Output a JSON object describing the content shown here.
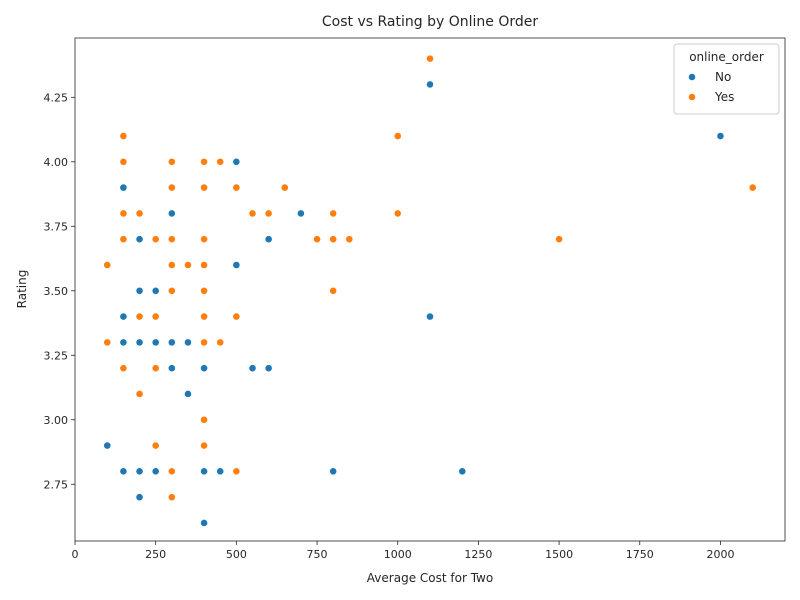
{
  "chart_data": {
    "type": "scatter",
    "title": "Cost vs Rating by Online Order",
    "xlabel": "Average Cost for Two",
    "ylabel": "Rating",
    "xlim": [
      0,
      2200
    ],
    "ylim": [
      2.53,
      4.48
    ],
    "xticks": [
      0,
      250,
      500,
      750,
      1000,
      1250,
      1500,
      1750,
      2000
    ],
    "yticks": [
      2.75,
      3.0,
      3.25,
      3.5,
      3.75,
      4.0,
      4.25
    ],
    "ytick_labels": [
      "2.75",
      "3.00",
      "3.25",
      "3.50",
      "3.75",
      "4.00",
      "4.25"
    ],
    "grid": false,
    "legend": {
      "title": "online_order",
      "placement": "top-right"
    },
    "series": [
      {
        "name": "No",
        "color": "#1f77b4",
        "points": [
          [
            1100,
            4.3
          ],
          [
            2000,
            4.1
          ],
          [
            500,
            4.0
          ],
          [
            150,
            3.9
          ],
          [
            300,
            3.8
          ],
          [
            700,
            3.8
          ],
          [
            200,
            3.7
          ],
          [
            600,
            3.7
          ],
          [
            500,
            3.6
          ],
          [
            200,
            3.5
          ],
          [
            250,
            3.5
          ],
          [
            150,
            3.4
          ],
          [
            1100,
            3.4
          ],
          [
            150,
            3.3
          ],
          [
            200,
            3.3
          ],
          [
            250,
            3.3
          ],
          [
            300,
            3.3
          ],
          [
            350,
            3.3
          ],
          [
            300,
            3.2
          ],
          [
            400,
            3.2
          ],
          [
            550,
            3.2
          ],
          [
            600,
            3.2
          ],
          [
            350,
            3.1
          ],
          [
            100,
            2.9
          ],
          [
            150,
            2.8
          ],
          [
            200,
            2.8
          ],
          [
            250,
            2.8
          ],
          [
            400,
            2.8
          ],
          [
            450,
            2.8
          ],
          [
            800,
            2.8
          ],
          [
            1200,
            2.8
          ],
          [
            200,
            2.7
          ],
          [
            400,
            2.6
          ]
        ]
      },
      {
        "name": "Yes",
        "color": "#ff7f0e",
        "points": [
          [
            1100,
            4.4
          ],
          [
            150,
            4.1
          ],
          [
            1000,
            4.1
          ],
          [
            150,
            4.0
          ],
          [
            300,
            4.0
          ],
          [
            400,
            4.0
          ],
          [
            450,
            4.0
          ],
          [
            300,
            3.9
          ],
          [
            400,
            3.9
          ],
          [
            500,
            3.9
          ],
          [
            650,
            3.9
          ],
          [
            2100,
            3.9
          ],
          [
            150,
            3.8
          ],
          [
            200,
            3.8
          ],
          [
            550,
            3.8
          ],
          [
            600,
            3.8
          ],
          [
            800,
            3.8
          ],
          [
            1000,
            3.8
          ],
          [
            150,
            3.7
          ],
          [
            250,
            3.7
          ],
          [
            300,
            3.7
          ],
          [
            400,
            3.7
          ],
          [
            750,
            3.7
          ],
          [
            800,
            3.7
          ],
          [
            850,
            3.7
          ],
          [
            1500,
            3.7
          ],
          [
            100,
            3.6
          ],
          [
            300,
            3.6
          ],
          [
            350,
            3.6
          ],
          [
            400,
            3.6
          ],
          [
            300,
            3.5
          ],
          [
            400,
            3.5
          ],
          [
            800,
            3.5
          ],
          [
            200,
            3.4
          ],
          [
            250,
            3.4
          ],
          [
            400,
            3.4
          ],
          [
            500,
            3.4
          ],
          [
            100,
            3.3
          ],
          [
            400,
            3.3
          ],
          [
            450,
            3.3
          ],
          [
            150,
            3.2
          ],
          [
            250,
            3.2
          ],
          [
            200,
            3.1
          ],
          [
            400,
            3.0
          ],
          [
            250,
            2.9
          ],
          [
            400,
            2.9
          ],
          [
            300,
            2.8
          ],
          [
            500,
            2.8
          ],
          [
            300,
            2.7
          ]
        ]
      }
    ]
  }
}
